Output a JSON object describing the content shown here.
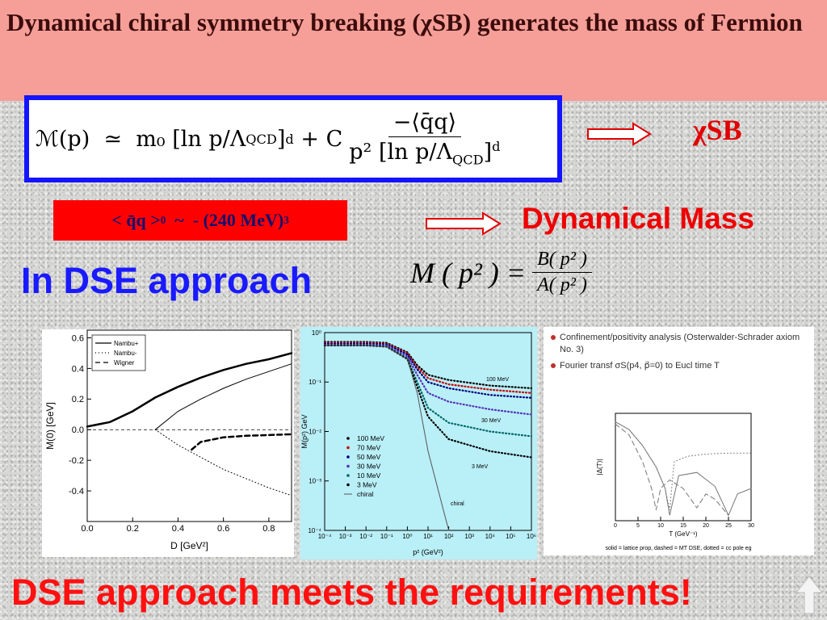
{
  "header": {
    "title": "Dynamical chiral symmetry breaking (χSB) generates the mass of Fermion"
  },
  "main_formula": {
    "lhs": "ℳ(p)",
    "relation": "≃",
    "mass_term": "m₀ [ln p/Λ",
    "subscript": "QCD",
    "bracket": "]",
    "power": "d",
    "plus": "+ C",
    "numerator": "−⟨q̄q⟩",
    "denominator": "p² [ln p/Λ"
  },
  "chi_sb": "χSB",
  "condensate": {
    "text": "< q̄q >",
    "subscript": "0",
    "relation": "  ~  - (240 MeV)",
    "power": "3"
  },
  "dynamical_mass": "Dynamical Mass",
  "dse_label": "In DSE approach",
  "dse_formula": {
    "lhs": "M ( p² ) =",
    "numerator": "B( p² )",
    "denominator": "A( p² )"
  },
  "plots": [
    {
      "type": "line",
      "xlabel": "D [GeV²]",
      "ylabel": "M(0) [GeV]",
      "xlim": [
        0,
        0.9
      ],
      "ylim": [
        -0.6,
        0.65
      ],
      "xticks": [
        {
          "value": 0,
          "label": "0.0"
        },
        0.2,
        0.4,
        0.6,
        0.8
      ],
      "yticks": [
        -0.4,
        -0.2,
        {
          "value": 0,
          "label": "0.0"
        },
        0.2,
        0.4,
        0.6
      ],
      "series": [
        {
          "name": "Nambu+",
          "style": "solid",
          "width": 2.5,
          "x": [
            0,
            0.1,
            0.2,
            0.3,
            0.4,
            0.5,
            0.6,
            0.7,
            0.8,
            0.9
          ],
          "values": [
            0.02,
            0.05,
            0.12,
            0.21,
            0.28,
            0.34,
            0.39,
            0.43,
            0.46,
            0.5
          ]
        },
        {
          "style": "solid",
          "width": 1,
          "x": [
            0.3,
            0.4,
            0.5,
            0.6,
            0.7,
            0.8,
            0.9
          ],
          "values": [
            0,
            0.12,
            0.2,
            0.27,
            0.33,
            0.38,
            0.43
          ]
        },
        {
          "name": "Nambu-",
          "style": "dotted",
          "width": 1,
          "x": [
            0.3,
            0.4,
            0.5,
            0.6,
            0.7,
            0.8,
            0.9
          ],
          "values": [
            0,
            -0.1,
            -0.18,
            -0.26,
            -0.32,
            -0.38,
            -0.43
          ]
        },
        {
          "name": "Wigner",
          "style": "dashed",
          "width": 2.5,
          "x": [
            0.46,
            0.5,
            0.6,
            0.7,
            0.8,
            0.9
          ],
          "values": [
            -0.13,
            -0.08,
            -0.05,
            -0.04,
            -0.035,
            -0.03
          ]
        }
      ]
    },
    {
      "type": "line",
      "xlabel": "p² (GeV²)",
      "ylabel": "M(p²) GeV",
      "xlog": true,
      "ylog": true,
      "xlim": [
        0.0001,
        1000000
      ],
      "ylim": [
        0.0001,
        1
      ],
      "xticks": [
        {
          "value": 0.0001,
          "label": "10⁻⁴"
        },
        {
          "value": 0.001,
          "label": "10⁻³"
        },
        {
          "value": 0.01,
          "label": "10⁻²"
        },
        {
          "value": 0.1,
          "label": "10⁻¹"
        },
        {
          "value": 1,
          "label": "10⁰"
        },
        {
          "value": 10,
          "label": "10¹"
        },
        {
          "value": 100,
          "label": "10²"
        },
        {
          "value": 1000,
          "label": "10³"
        },
        {
          "value": 10000,
          "label": "10⁴"
        },
        {
          "value": 100000,
          "label": "10⁵"
        },
        {
          "value": 1000000,
          "label": "10⁶"
        }
      ],
      "yticks": [
        {
          "value": 0.0001,
          "label": "10⁻⁴"
        },
        {
          "value": 0.001,
          "label": "10⁻³"
        },
        {
          "value": 0.01,
          "label": "10⁻²"
        },
        {
          "value": 0.1,
          "label": "10⁻¹"
        },
        {
          "value": 1,
          "label": "10⁰"
        }
      ],
      "x": [
        0.0001,
        0.01,
        0.1,
        1,
        3,
        10,
        100,
        10000,
        1000000
      ],
      "series": [
        {
          "name": "100 MeV",
          "color": "#000000",
          "values": [
            0.65,
            0.65,
            0.62,
            0.4,
            0.22,
            0.14,
            0.11,
            0.085,
            0.075
          ]
        },
        {
          "name": "70 MeV",
          "color": "#cc0000",
          "values": [
            0.63,
            0.63,
            0.6,
            0.38,
            0.2,
            0.12,
            0.09,
            0.07,
            0.06
          ]
        },
        {
          "name": "50 MeV",
          "color": "#000080",
          "values": [
            0.6,
            0.6,
            0.58,
            0.36,
            0.18,
            0.1,
            0.075,
            0.055,
            0.048
          ]
        },
        {
          "name": "30 MeV",
          "color": "#5533bb",
          "values": [
            0.57,
            0.57,
            0.55,
            0.33,
            0.14,
            0.06,
            0.04,
            0.028,
            0.022
          ]
        },
        {
          "name": "10 MeV",
          "color": "#006666",
          "values": [
            0.55,
            0.55,
            0.52,
            0.3,
            0.1,
            0.03,
            0.015,
            0.01,
            0.008
          ]
        },
        {
          "name": "3 MeV",
          "color": "#000000",
          "values": [
            0.55,
            0.55,
            0.52,
            0.29,
            0.08,
            0.02,
            0.007,
            0.004,
            0.003
          ]
        },
        {
          "name": "chiral",
          "color": "#555555",
          "style": "solid",
          "values": [
            0.55,
            0.55,
            0.52,
            0.29,
            0.06,
            0.004,
            0.0001,
            null,
            null
          ]
        }
      ],
      "annotations": [
        "100 MeV",
        "30 MeV",
        "3 MeV",
        "chiral"
      ]
    },
    {
      "type": "line",
      "bullets": [
        "Confinement/positivity analysis (Osterwalder-Schrader axiom No. 3)",
        "Fourier transf σS(p4, p⃗=0) to Eucl time T"
      ],
      "xlabel": "T (GeV⁻¹)",
      "ylabel": "|Δ(T)|",
      "xlim": [
        0,
        30
      ],
      "ylim": [
        0,
        1
      ],
      "xticks": [
        0,
        5,
        10,
        15,
        20,
        25,
        30
      ],
      "caption": "solid = lattice prop, dashed = MT DSE, dotted = cc pole eg",
      "series": [
        {
          "style": "solid",
          "x": [
            0,
            3,
            6,
            9,
            11,
            12,
            14,
            18,
            22,
            25,
            27,
            30
          ],
          "values": [
            0.92,
            0.85,
            0.7,
            0.5,
            0.3,
            0.05,
            0.42,
            0.45,
            0.32,
            0.05,
            0.25,
            0.3
          ]
        },
        {
          "style": "dashed",
          "x": [
            0,
            3,
            6,
            8,
            9,
            10,
            12,
            15,
            18,
            20,
            22,
            25
          ],
          "values": [
            0.9,
            0.8,
            0.55,
            0.3,
            0.1,
            0.3,
            0.38,
            0.3,
            0.12,
            0.25,
            0.2,
            0.05
          ]
        },
        {
          "style": "dotted",
          "x": [
            0,
            3,
            6,
            9,
            11,
            12,
            13,
            16,
            20,
            25,
            30
          ],
          "values": [
            0.92,
            0.85,
            0.7,
            0.5,
            0.3,
            0.1,
            0.55,
            0.6,
            0.62,
            0.63,
            0.63
          ]
        }
      ]
    }
  ],
  "footer": "DSE approach meets the requirements!"
}
